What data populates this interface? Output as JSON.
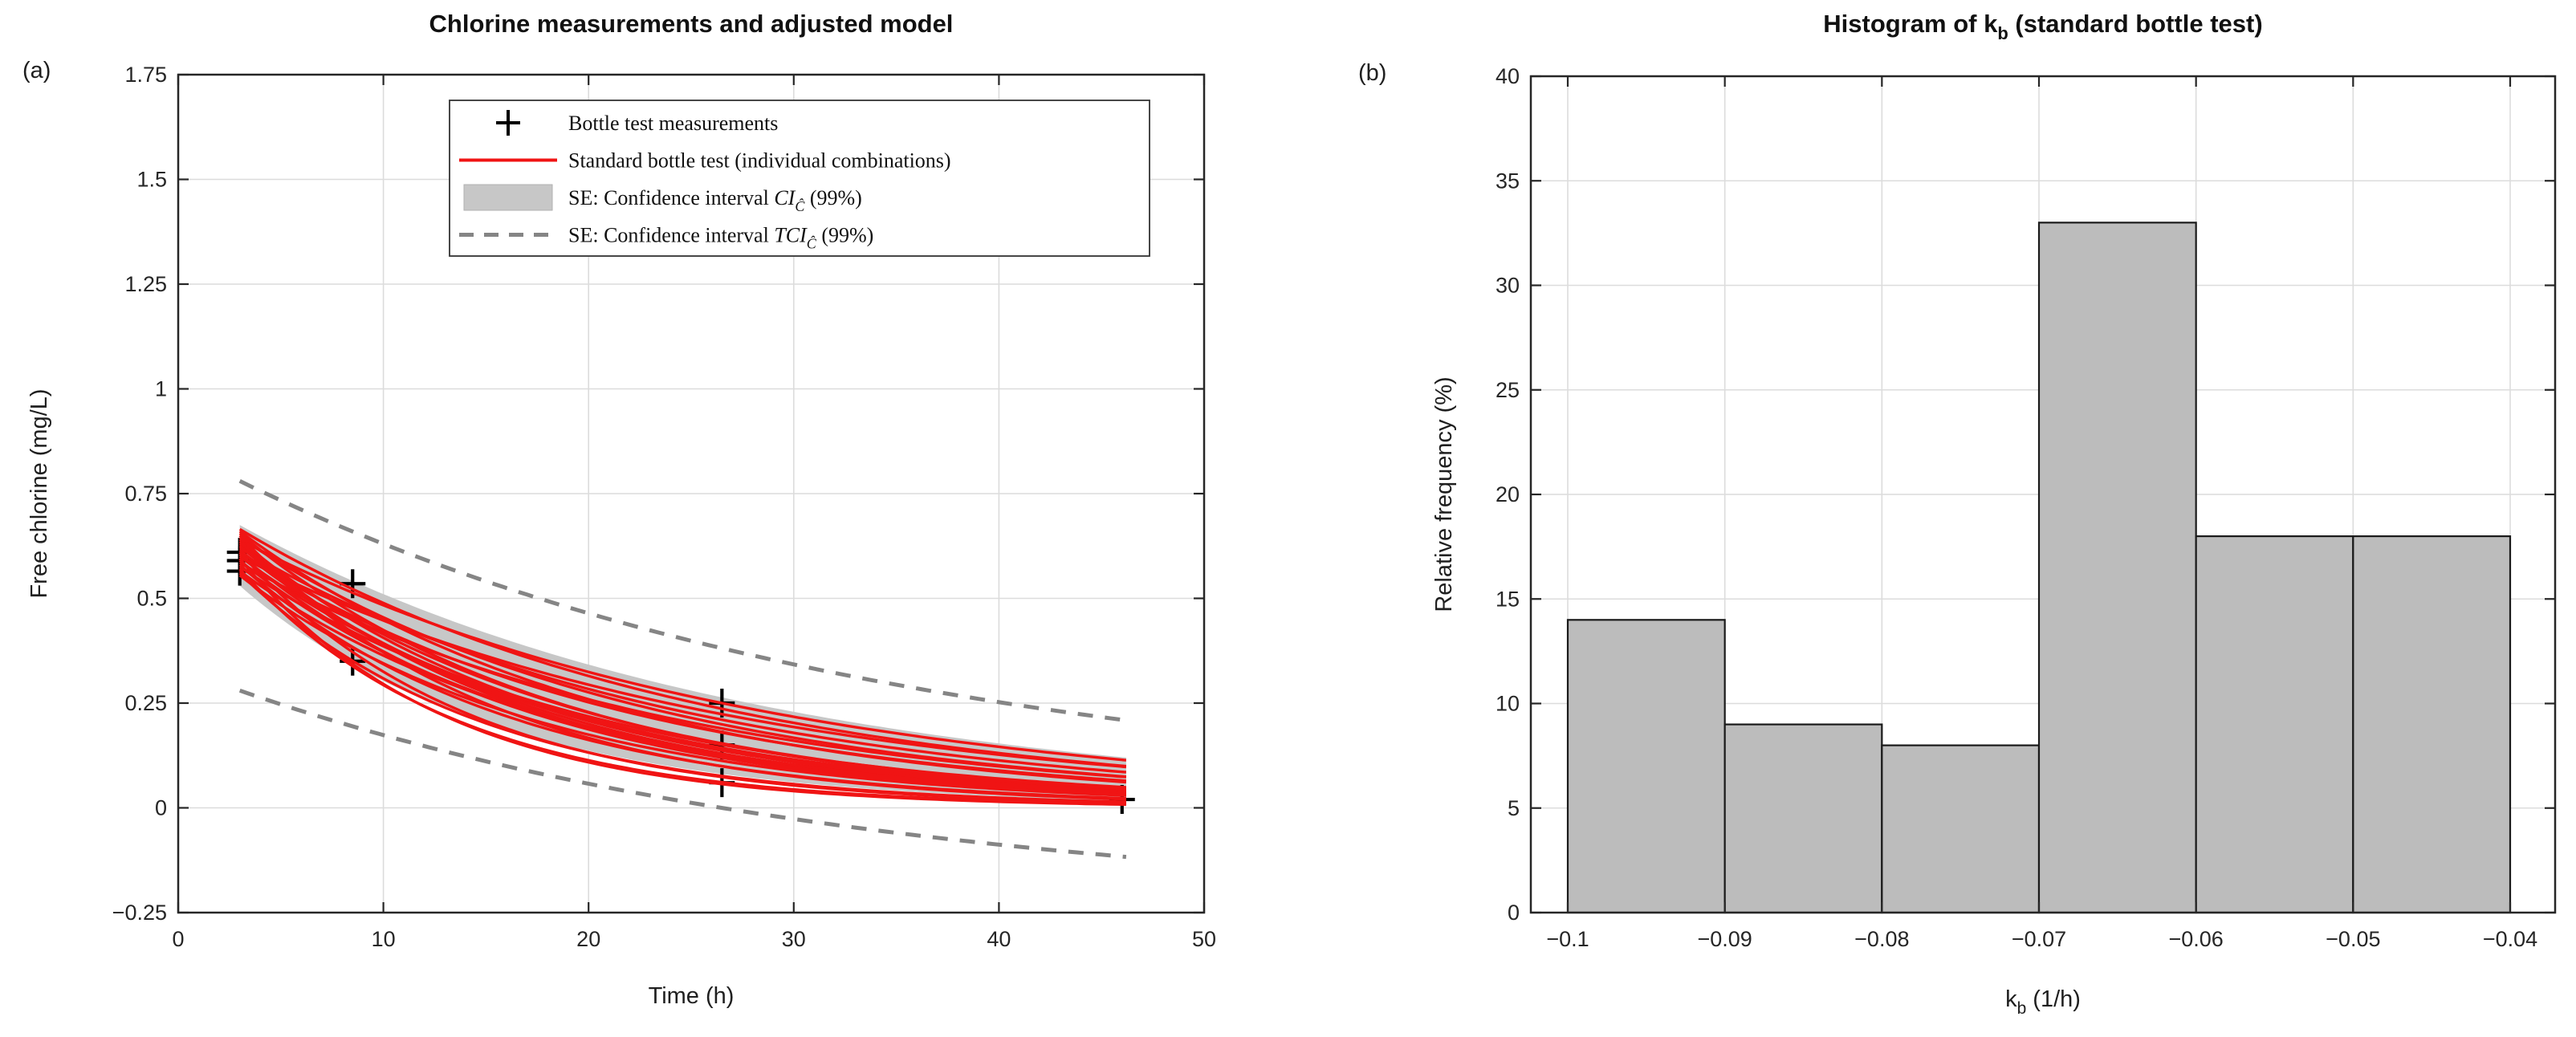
{
  "figure": {
    "panel_a_label": "(a)",
    "panel_b_label": "(b)"
  },
  "colors": {
    "background": "#ffffff",
    "model_red": "#f01414",
    "band_gray": "#c7c7c7",
    "dashed_gray": "#858585",
    "bar_fill": "#bcbcbc",
    "bar_edge": "#1a1a1a",
    "axis_color": "#262626",
    "grid_color": "#dcdcdc",
    "marker_black": "#000000",
    "legend_border": "#333333"
  },
  "chart_data": [
    {
      "id": "a",
      "type": "line",
      "title": "Chlorine measurements and adjusted model",
      "xlabel": "Time (h)",
      "ylabel": "Free chlorine (mg/L)",
      "xlim": [
        0,
        50
      ],
      "ylim": [
        -0.25,
        1.75
      ],
      "grid": true,
      "legend_position": "upper left",
      "xtick_values": [
        0,
        10,
        20,
        30,
        40,
        50
      ],
      "xtick_labels": [
        "0",
        "10",
        "20",
        "30",
        "40",
        "50"
      ],
      "ytick_values": [
        -0.25,
        0,
        0.25,
        0.5,
        0.75,
        1,
        1.25,
        1.5,
        1.75
      ],
      "ytick_labels": [
        "−0.25",
        "0",
        "0.25",
        "0.5",
        "0.75",
        "1",
        "1.25",
        "1.5",
        "1.75"
      ],
      "legend": {
        "items": [
          {
            "marker": "plus",
            "segments": [
              {
                "t": "Bottle test measurements",
                "style": "plain"
              }
            ]
          },
          {
            "marker": "red-line",
            "segments": [
              {
                "t": "Standard bottle test (individual combinations)",
                "style": "plain"
              }
            ]
          },
          {
            "marker": "gray-patch",
            "segments": [
              {
                "t": "SE: Confidence interval ",
                "style": "plain"
              },
              {
                "t": "CI",
                "style": "italic"
              },
              {
                "t": "Ĉ",
                "style": "subscript-italic"
              },
              {
                "t": " (99%)",
                "style": "plain"
              }
            ]
          },
          {
            "marker": "dashed-line",
            "segments": [
              {
                "t": "SE: Confidence interval ",
                "style": "plain"
              },
              {
                "t": "TCI",
                "style": "italic"
              },
              {
                "t": "Ĉ",
                "style": "subscript-italic"
              },
              {
                "t": " (99%)",
                "style": "plain"
              }
            ]
          }
        ]
      },
      "measurements": {
        "name": "Bottle test measurements",
        "points": [
          [
            3,
            0.61
          ],
          [
            3,
            0.59
          ],
          [
            3,
            0.565
          ],
          [
            8.5,
            0.535
          ],
          [
            8.5,
            0.35
          ],
          [
            26.5,
            0.25
          ],
          [
            26.5,
            0.15
          ],
          [
            26.5,
            0.06
          ],
          [
            46,
            0.02
          ]
        ]
      },
      "model_curves": {
        "name": "Standard bottle test (individual combinations)",
        "formula": "C(t) = C3 * exp(kb * (t - 3))",
        "t_range": [
          3,
          46.2
        ],
        "params_c3_kb": [
          [
            0.64,
            -0.04
          ],
          [
            0.6,
            -0.042
          ],
          [
            0.665,
            -0.044
          ],
          [
            0.62,
            -0.046
          ],
          [
            0.585,
            -0.048
          ],
          [
            0.645,
            -0.05
          ],
          [
            0.61,
            -0.052
          ],
          [
            0.66,
            -0.055
          ],
          [
            0.575,
            -0.057
          ],
          [
            0.63,
            -0.06
          ],
          [
            0.6,
            -0.061
          ],
          [
            0.655,
            -0.062
          ],
          [
            0.565,
            -0.063
          ],
          [
            0.615,
            -0.064
          ],
          [
            0.64,
            -0.065
          ],
          [
            0.59,
            -0.066
          ],
          [
            0.625,
            -0.067
          ],
          [
            0.555,
            -0.068
          ],
          [
            0.605,
            -0.069
          ],
          [
            0.635,
            -0.07
          ],
          [
            0.58,
            -0.075
          ],
          [
            0.65,
            -0.08
          ],
          [
            0.56,
            -0.085
          ],
          [
            0.61,
            -0.09
          ],
          [
            0.57,
            -0.095
          ],
          [
            0.595,
            -0.1
          ]
        ]
      },
      "ci_band": {
        "name": "SE: Confidence interval CIĈ (99%)",
        "t_range": [
          3,
          46.2
        ],
        "upper": {
          "c3": 0.675,
          "kb": -0.04
        },
        "lower": {
          "c3": 0.53,
          "kb": -0.08
        }
      },
      "tci_bounds": {
        "name": "SE: Confidence interval TCIĈ (99%)",
        "t_range": [
          3,
          46.3
        ],
        "upper": {
          "amp": 0.78,
          "k": -0.0305,
          "offset": 0
        },
        "lower": {
          "amp": 0.53,
          "k": -0.032,
          "offset": -0.25
        }
      }
    },
    {
      "id": "b",
      "type": "histogram",
      "title_text": "Histogram of k_b (standard bottle test)",
      "title_segments": [
        {
          "t": "Histogram of k",
          "style": "plain"
        },
        {
          "t": "b",
          "style": "subscript"
        },
        {
          "t": " (standard bottle test)",
          "style": "plain"
        }
      ],
      "xlabel_text": "k_b (1/h)",
      "xlabel_segments": [
        {
          "t": "k",
          "style": "plain"
        },
        {
          "t": "b",
          "style": "subscript"
        },
        {
          "t": " (1/h)",
          "style": "plain"
        }
      ],
      "ylabel": "Relative frequency (%)",
      "ylim": [
        0,
        40
      ],
      "grid": true,
      "bin_edges": [
        -0.1,
        -0.09,
        -0.08,
        -0.07,
        -0.06,
        -0.05,
        -0.04
      ],
      "values": [
        14,
        9,
        8,
        33,
        18,
        18
      ],
      "xtick_values": [
        -0.1,
        -0.09,
        -0.08,
        -0.07,
        -0.06,
        -0.05,
        -0.04
      ],
      "xtick_labels": [
        "−0.1",
        "−0.09",
        "−0.08",
        "−0.07",
        "−0.06",
        "−0.05",
        "−0.04"
      ],
      "ytick_values": [
        0,
        5,
        10,
        15,
        20,
        25,
        30,
        35,
        40
      ],
      "ytick_labels": [
        "0",
        "5",
        "10",
        "15",
        "20",
        "25",
        "30",
        "35",
        "40"
      ]
    }
  ]
}
